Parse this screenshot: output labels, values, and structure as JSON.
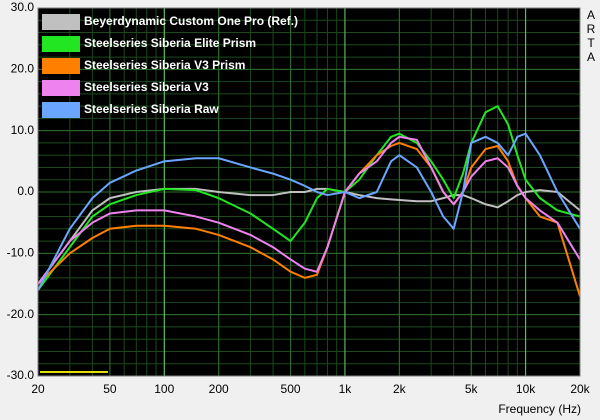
{
  "chart_data": {
    "type": "line",
    "x_label": "Frequency (Hz)",
    "watermark": "ARTA",
    "log_x": true,
    "grid": true,
    "xlim": [
      20,
      20000
    ],
    "xticks": [
      20,
      50,
      100,
      200,
      500,
      {
        "value": 1000,
        "label": "1k"
      },
      {
        "value": 2000,
        "label": "2k"
      },
      {
        "value": 5000,
        "label": "5k"
      },
      {
        "value": 10000,
        "label": "10k"
      },
      {
        "value": 20000,
        "label": "20k"
      }
    ],
    "ylim": [
      -30,
      30
    ],
    "yticks": [
      {
        "value": 30,
        "label": "30.0"
      },
      {
        "value": 20,
        "label": "20.0"
      },
      {
        "value": 10,
        "label": "10.0"
      },
      {
        "value": 0,
        "label": "0.0"
      },
      {
        "value": -10,
        "label": "-10.0"
      },
      {
        "value": -20,
        "label": "-20.0"
      },
      {
        "value": -30,
        "label": "-30.0"
      }
    ],
    "x": [
      20,
      30,
      40,
      50,
      70,
      100,
      150,
      200,
      300,
      400,
      500,
      600,
      700,
      800,
      1000,
      1200,
      1500,
      1800,
      2000,
      2500,
      3000,
      3500,
      4000,
      4500,
      5000,
      6000,
      7000,
      8000,
      9000,
      10000,
      12000,
      15000,
      20000
    ],
    "series": [
      {
        "name": "Beyerdynamic Custom One Pro (Ref.)",
        "color": "#c0c0c0",
        "values": [
          -15,
          -8,
          -3,
          -1,
          0,
          0.5,
          0.5,
          0,
          -0.5,
          -0.5,
          0,
          0,
          0.5,
          0.5,
          0,
          -0.5,
          -1,
          -1.2,
          -1.3,
          -1.5,
          -1.5,
          -1,
          -0.5,
          -0.5,
          -1,
          -2,
          -2.5,
          -1.5,
          -0.5,
          0,
          0.3,
          0,
          -3
        ]
      },
      {
        "name": "Steelseries Siberia Elite Prism",
        "color": "#22e622",
        "values": [
          -16,
          -9,
          -4,
          -2,
          -0.5,
          0.5,
          0.3,
          -1,
          -3.5,
          -6,
          -8,
          -5,
          -1,
          0.5,
          0,
          2,
          6,
          9,
          9.5,
          8,
          5,
          2,
          -1,
          3,
          8,
          13,
          14,
          11,
          6,
          2,
          -1,
          -3,
          -4
        ]
      },
      {
        "name": "Steelseries Siberia V3 Prism",
        "color": "#ff7f00",
        "values": [
          -15,
          -10,
          -7.5,
          -6,
          -5.5,
          -5.5,
          -6,
          -7,
          -9,
          -11,
          -13,
          -14,
          -13.5,
          -9,
          0,
          3,
          6,
          7.5,
          8,
          7,
          4,
          0,
          -2,
          0,
          4,
          7,
          7.5,
          5,
          1,
          -1,
          -4,
          -5,
          -17
        ]
      },
      {
        "name": "Steelseries Siberia V3",
        "color": "#ee82ee",
        "values": [
          -15,
          -8,
          -5,
          -3.5,
          -3,
          -3,
          -4,
          -5,
          -7,
          -9,
          -11,
          -12.5,
          -13,
          -9,
          0,
          3,
          5,
          8,
          9,
          8.5,
          4,
          0,
          -2,
          0,
          2.5,
          5,
          5.5,
          4,
          1,
          -1,
          -3,
          -5,
          -11
        ]
      },
      {
        "name": "Steelseries Siberia Raw",
        "color": "#6aa6ff",
        "values": [
          -16,
          -6,
          -1,
          1.5,
          3.5,
          5,
          5.5,
          5.5,
          4,
          3,
          2,
          1,
          0,
          -0.5,
          0,
          -1,
          0,
          5,
          6,
          4,
          0,
          -4,
          -6,
          0,
          8,
          9,
          8,
          6,
          9,
          9.5,
          6,
          0,
          -6
        ]
      }
    ]
  }
}
